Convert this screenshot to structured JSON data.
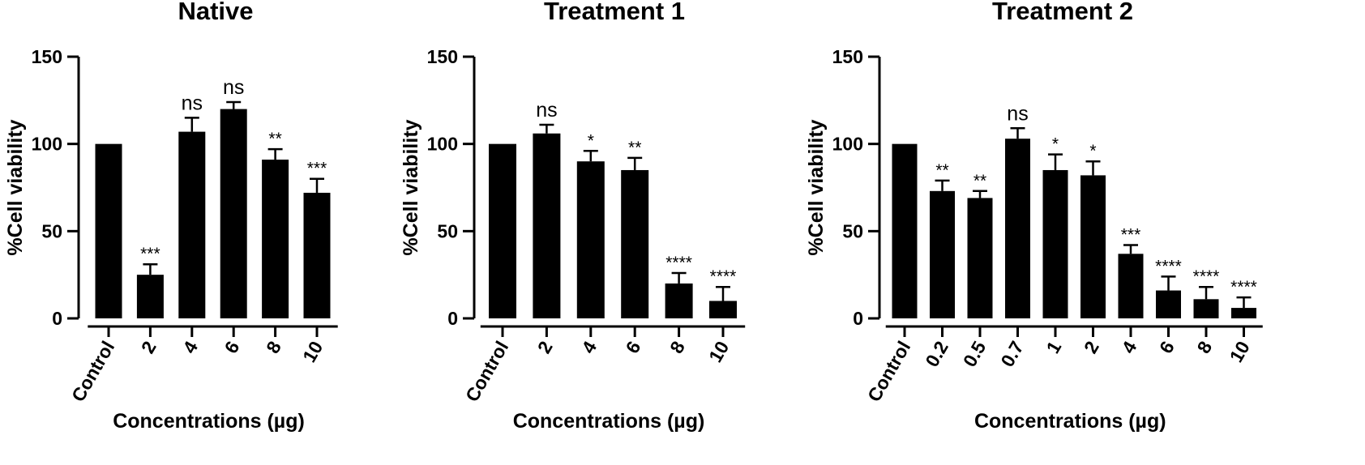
{
  "chart_data": [
    {
      "type": "bar",
      "title": "Native",
      "xlabel": "Concentrations (µg)",
      "ylabel": "%Cell viability",
      "ylim": [
        0,
        150
      ],
      "yticks": [
        "0",
        "50",
        "100",
        "150"
      ],
      "categories": [
        "Control",
        "2",
        "4",
        "6",
        "8",
        "10"
      ],
      "values": [
        100,
        25,
        107,
        120,
        91,
        72
      ],
      "errors": [
        0,
        6,
        8,
        4,
        6,
        8
      ],
      "significance": [
        "",
        "***",
        "ns",
        "ns",
        "**",
        "***"
      ],
      "grid": false,
      "bar_color": "#000000"
    },
    {
      "type": "bar",
      "title": "Treatment 1",
      "xlabel": "Concentrations (µg)",
      "ylabel": "%Cell viability",
      "ylim": [
        0,
        150
      ],
      "yticks": [
        "0",
        "50",
        "100",
        "150"
      ],
      "categories": [
        "Control",
        "2",
        "4",
        "6",
        "8",
        "10"
      ],
      "values": [
        100,
        106,
        90,
        85,
        20,
        10
      ],
      "errors": [
        0,
        5,
        6,
        7,
        6,
        8
      ],
      "significance": [
        "",
        "ns",
        "*",
        "**",
        "****",
        "****"
      ],
      "grid": false,
      "bar_color": "#000000"
    },
    {
      "type": "bar",
      "title": "Treatment 2",
      "xlabel": "Concentrations (µg)",
      "ylabel": "%Cell viability",
      "ylim": [
        0,
        150
      ],
      "yticks": [
        "0",
        "50",
        "100",
        "150"
      ],
      "categories": [
        "Control",
        "0.2",
        "0.5",
        "0.7",
        "1",
        "2",
        "4",
        "6",
        "8",
        "10"
      ],
      "values": [
        100,
        73,
        69,
        103,
        85,
        82,
        37,
        16,
        11,
        6
      ],
      "errors": [
        0,
        6,
        4,
        6,
        9,
        8,
        5,
        8,
        7,
        6
      ],
      "significance": [
        "",
        "**",
        "**",
        "ns",
        "*",
        "*",
        "***",
        "****",
        "****",
        "****"
      ],
      "grid": false,
      "bar_color": "#000000"
    }
  ]
}
